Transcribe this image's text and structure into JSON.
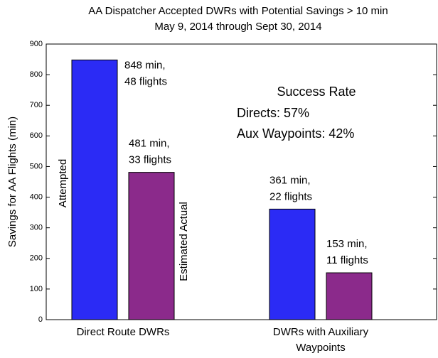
{
  "chart_data": {
    "type": "bar",
    "title": "AA Dispatcher Accepted DWRs with Potential Savings > 10 min",
    "subtitle": "May 9, 2014 through Sept 30, 2014",
    "ylabel": "Savings for AA Flights (min)",
    "categories": [
      "Direct Route DWRs",
      "DWRs with Auxiliary Waypoints"
    ],
    "series": [
      {
        "name": "Attempted",
        "color": "#2b2bf5",
        "values": [
          848,
          361
        ],
        "value_labels": [
          "848 min, 48 flights",
          "361 min, 22 flights"
        ]
      },
      {
        "name": "Estimated Actual",
        "color": "#8b2a8b",
        "values": [
          481,
          153
        ],
        "value_labels": [
          "481 min, 33 flights",
          "153 min, 11 flights"
        ]
      }
    ],
    "annotations": [
      "Success Rate",
      "Directs: 57%",
      "Aux Waypoints: 42%"
    ],
    "ylim": [
      0,
      900
    ],
    "yticks": [
      0,
      100,
      200,
      300,
      400,
      500,
      600,
      700,
      800,
      900
    ],
    "grid": false
  }
}
